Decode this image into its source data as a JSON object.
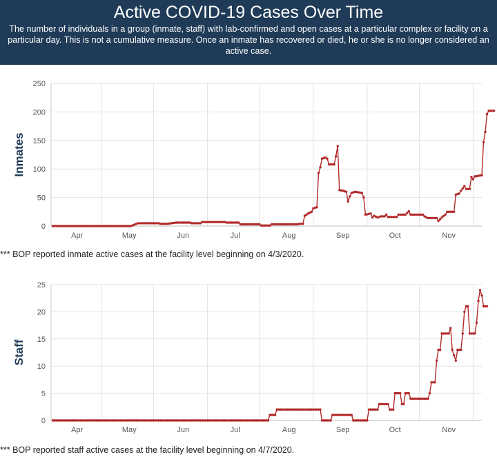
{
  "header": {
    "title": "Active COVID-19 Cases Over Time",
    "description": "The number of individuals in a group (inmate, staff) with lab-confirmed and open cases at a particular complex or facility on a particular day. This is not a cumulative measure. Once an inmate has recovered or died, he or she is no longer considered an active case."
  },
  "colors": {
    "header_bg": "#1f3b57",
    "series": "#b22a2a",
    "grid": "#e3e3e3"
  },
  "notes": {
    "inmates": "*** BOP reported inmate active cases at the facility level beginning on 4/3/2020.",
    "staff": "*** BOP reported staff active cases at the facility level beginning on 4/7/2020."
  },
  "chart_data": [
    {
      "type": "line",
      "name": "inmates",
      "ylabel": "Inmates",
      "xlabel": "",
      "ylim": [
        0,
        250
      ],
      "yticks": [
        0,
        50,
        100,
        150,
        200,
        250
      ],
      "x_domain_days": [
        0,
        248
      ],
      "month_ticks": [
        {
          "label": "Apr",
          "day": 15
        },
        {
          "label": "May",
          "day": 45
        },
        {
          "label": "Jun",
          "day": 76
        },
        {
          "label": "Jul",
          "day": 106
        },
        {
          "label": "Aug",
          "day": 137
        },
        {
          "label": "Sep",
          "day": 168
        },
        {
          "label": "Oct",
          "day": 198
        },
        {
          "label": "Nov",
          "day": 229
        }
      ],
      "month_gridlines_days": [
        29,
        59,
        90,
        120,
        151,
        182,
        212,
        243
      ],
      "x_note": "x values are days since 2020-03-03",
      "points": [
        [
          1,
          0
        ],
        [
          46,
          0
        ],
        [
          50,
          5
        ],
        [
          62,
          5
        ],
        [
          63,
          4
        ],
        [
          67,
          4
        ],
        [
          72,
          6
        ],
        [
          80,
          6
        ],
        [
          81,
          5
        ],
        [
          86,
          5
        ],
        [
          87,
          7
        ],
        [
          100,
          7
        ],
        [
          101,
          6
        ],
        [
          108,
          6
        ],
        [
          109,
          3
        ],
        [
          120,
          3
        ],
        [
          121,
          1
        ],
        [
          126,
          1
        ],
        [
          127,
          3
        ],
        [
          142,
          3
        ],
        [
          143,
          4
        ],
        [
          145,
          4
        ],
        [
          146,
          18
        ],
        [
          148,
          22
        ],
        [
          150,
          25
        ],
        [
          151,
          31
        ],
        [
          153,
          33
        ],
        [
          154,
          93
        ],
        [
          155,
          103
        ],
        [
          156,
          118
        ],
        [
          158,
          120
        ],
        [
          159,
          118
        ],
        [
          160,
          108
        ],
        [
          163,
          108
        ],
        [
          164,
          122
        ],
        [
          165,
          140
        ],
        [
          166,
          63
        ],
        [
          168,
          62
        ],
        [
          170,
          60
        ],
        [
          171,
          43
        ],
        [
          172,
          52
        ],
        [
          173,
          58
        ],
        [
          175,
          60
        ],
        [
          179,
          58
        ],
        [
          180,
          50
        ],
        [
          181,
          20
        ],
        [
          184,
          22
        ],
        [
          185,
          15
        ],
        [
          186,
          18
        ],
        [
          188,
          15
        ],
        [
          190,
          17
        ],
        [
          192,
          17
        ],
        [
          193,
          20
        ],
        [
          194,
          16
        ],
        [
          199,
          16
        ],
        [
          200,
          20
        ],
        [
          204,
          20
        ],
        [
          206,
          26
        ],
        [
          207,
          20
        ],
        [
          214,
          20
        ],
        [
          215,
          17
        ],
        [
          217,
          14
        ],
        [
          222,
          14
        ],
        [
          223,
          9
        ],
        [
          225,
          15
        ],
        [
          227,
          20
        ],
        [
          228,
          25
        ],
        [
          232,
          25
        ],
        [
          233,
          55
        ],
        [
          235,
          57
        ],
        [
          236,
          62
        ],
        [
          238,
          70
        ],
        [
          239,
          65
        ],
        [
          241,
          65
        ],
        [
          242,
          86
        ],
        [
          243,
          82
        ],
        [
          244,
          87
        ],
        [
          246,
          88
        ],
        [
          248,
          89
        ],
        [
          249,
          147
        ],
        [
          250,
          165
        ],
        [
          251,
          196
        ],
        [
          252,
          202
        ],
        [
          255,
          202
        ]
      ]
    },
    {
      "type": "line",
      "name": "staff",
      "ylabel": "Staff",
      "xlabel": "",
      "ylim": [
        0,
        25
      ],
      "yticks": [
        0,
        5,
        10,
        15,
        20,
        25
      ],
      "x_domain_days": [
        0,
        248
      ],
      "month_ticks": [
        {
          "label": "Apr",
          "day": 15
        },
        {
          "label": "May",
          "day": 45
        },
        {
          "label": "Jun",
          "day": 76
        },
        {
          "label": "Jul",
          "day": 106
        },
        {
          "label": "Aug",
          "day": 137
        },
        {
          "label": "Sep",
          "day": 168
        },
        {
          "label": "Oct",
          "day": 198
        },
        {
          "label": "Nov",
          "day": 229
        }
      ],
      "month_gridlines_days": [
        29,
        59,
        90,
        120,
        151,
        182,
        212,
        243
      ],
      "x_note": "x values are days since 2020-03-03",
      "points": [
        [
          1,
          0
        ],
        [
          125,
          0
        ],
        [
          126,
          1
        ],
        [
          129,
          1
        ],
        [
          130,
          2
        ],
        [
          155,
          2
        ],
        [
          156,
          0
        ],
        [
          161,
          0
        ],
        [
          162,
          1
        ],
        [
          173,
          1
        ],
        [
          174,
          0
        ],
        [
          182,
          0
        ],
        [
          183,
          2
        ],
        [
          188,
          2
        ],
        [
          189,
          3
        ],
        [
          194,
          3
        ],
        [
          195,
          2
        ],
        [
          197,
          2
        ],
        [
          198,
          5
        ],
        [
          201,
          5
        ],
        [
          202,
          3
        ],
        [
          203,
          3
        ],
        [
          204,
          5
        ],
        [
          206,
          5
        ],
        [
          207,
          4
        ],
        [
          217,
          4
        ],
        [
          218,
          5
        ],
        [
          219,
          7
        ],
        [
          221,
          7
        ],
        [
          222,
          11
        ],
        [
          223,
          13
        ],
        [
          224,
          13
        ],
        [
          225,
          16
        ],
        [
          229,
          16
        ],
        [
          230,
          17
        ],
        [
          231,
          13
        ],
        [
          232,
          12
        ],
        [
          233,
          11
        ],
        [
          234,
          13
        ],
        [
          236,
          13
        ],
        [
          237,
          16
        ],
        [
          238,
          20
        ],
        [
          239,
          21
        ],
        [
          240,
          21
        ],
        [
          241,
          16
        ],
        [
          244,
          16
        ],
        [
          245,
          18
        ],
        [
          246,
          22
        ],
        [
          247,
          24
        ],
        [
          248,
          23
        ],
        [
          249,
          21
        ],
        [
          251,
          21
        ]
      ]
    }
  ]
}
